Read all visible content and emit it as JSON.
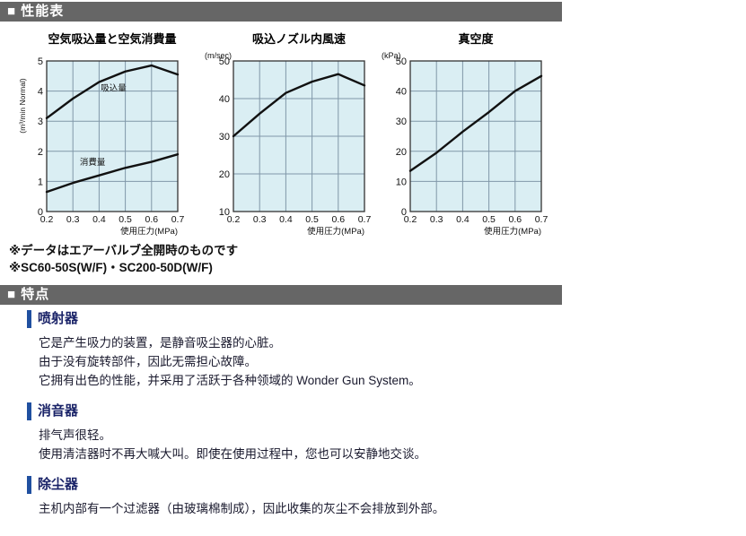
{
  "headers": {
    "performance": "■ 性能表",
    "features": "■ 特点"
  },
  "colors": {
    "bar_bg": "#666666",
    "bar_text": "#ffffff",
    "plot_bg": "#daeef3",
    "grid": "#8097a8",
    "plot_border": "#333333",
    "line": "#111111",
    "heading_text": "#1a2368",
    "heading_bar": "#2050a0"
  },
  "chart_data": [
    {
      "type": "line",
      "title": "空気吸込量と空気消費量",
      "unit": "(m³/min Normal)",
      "unit_rotated": true,
      "xlabel": "使用圧力(MPa)",
      "x": [
        0.2,
        0.3,
        0.4,
        0.5,
        0.6,
        0.7
      ],
      "xticks": [
        "0.2",
        "0.3",
        "0.4",
        "0.5",
        "0.6",
        "0.7"
      ],
      "xlim": [
        0.2,
        0.7
      ],
      "ylim": [
        0,
        5
      ],
      "yticks": [
        0,
        1,
        2,
        3,
        4,
        5
      ],
      "grid": true,
      "legend": "inline-labels",
      "series": [
        {
          "name": "吸込量",
          "values": [
            3.1,
            3.75,
            4.3,
            4.65,
            4.85,
            4.55
          ],
          "label_at": [
            0.455,
            4.0
          ]
        },
        {
          "name": "消費量",
          "values": [
            0.65,
            0.95,
            1.2,
            1.45,
            1.65,
            1.9
          ],
          "label_at": [
            0.375,
            1.55
          ]
        }
      ]
    },
    {
      "type": "line",
      "title": "吸込ノズル内風速",
      "unit": "(m/sec)",
      "unit_rotated": false,
      "xlabel": "使用圧力(MPa)",
      "x": [
        0.2,
        0.3,
        0.4,
        0.5,
        0.6,
        0.7
      ],
      "xticks": [
        "0.2",
        "0.3",
        "0.4",
        "0.5",
        "0.6",
        "0.7"
      ],
      "xlim": [
        0.2,
        0.7
      ],
      "ylim": [
        10,
        50
      ],
      "yticks": [
        10,
        20,
        30,
        40,
        50
      ],
      "grid": true,
      "legend": "none",
      "series": [
        {
          "name": "",
          "values": [
            30,
            36,
            41.5,
            44.5,
            46.5,
            43.5
          ]
        }
      ]
    },
    {
      "type": "line",
      "title": "真空度",
      "unit": "(kPa)",
      "unit_rotated": false,
      "xlabel": "使用圧力(MPa)",
      "x": [
        0.2,
        0.3,
        0.4,
        0.5,
        0.6,
        0.7
      ],
      "xticks": [
        "0.2",
        "0.3",
        "0.4",
        "0.5",
        "0.6",
        "0.7"
      ],
      "xlim": [
        0.2,
        0.7
      ],
      "ylim": [
        0,
        50
      ],
      "yticks": [
        0,
        10,
        20,
        30,
        40,
        50
      ],
      "grid": true,
      "legend": "none",
      "series": [
        {
          "name": "",
          "values": [
            13.5,
            19.5,
            26.5,
            33,
            40,
            45
          ]
        }
      ]
    }
  ],
  "notes": {
    "line1": "※データはエアーバルブ全開時のものです",
    "line2": "※SC60-50S(W/F)・SC200-50D(W/F)"
  },
  "features": {
    "sections": [
      {
        "heading": "喷射器",
        "lines": [
          "它是产生吸力的装置，是静音吸尘器的心脏。",
          "由于没有旋转部件，因此无需担心故障。",
          "它拥有出色的性能，并采用了活跃于各种领域的 Wonder Gun System。"
        ]
      },
      {
        "heading": "消音器",
        "lines": [
          "排气声很轻。",
          "使用清洁器时不再大喊大叫。即使在使用过程中，您也可以安静地交谈。"
        ]
      },
      {
        "heading": "除尘器",
        "lines": [
          "主机内部有一个过滤器（由玻璃棉制成），因此收集的灰尘不会排放到外部。"
        ]
      }
    ]
  }
}
